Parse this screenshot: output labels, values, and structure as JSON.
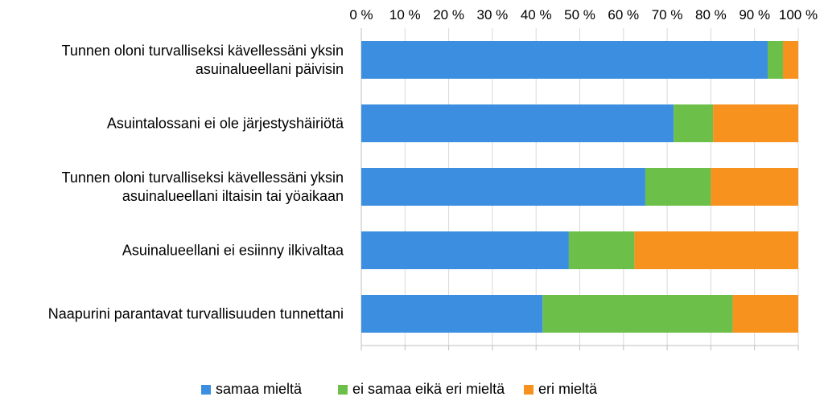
{
  "chart_data": {
    "type": "bar",
    "orientation": "horizontal",
    "stacked": true,
    "categories": [
      [
        "Tunnen oloni turvalliseksi kävellessäni yksin",
        "asuinalueellani päivisin"
      ],
      [
        "Asuintalossani ei ole järjestyshäiriötä"
      ],
      [
        "Tunnen oloni turvalliseksi kävellessäni yksin",
        "asuinalueellani iltaisin tai yöaikaan"
      ],
      [
        "Asuinalueellani ei esiinny ilkivaltaa"
      ],
      [
        "Naapurini parantavat turvallisuuden tunnettani"
      ]
    ],
    "series": [
      {
        "name": "samaa mieltä",
        "color": "#3c8fe0",
        "values": [
          93,
          71.5,
          65,
          47.5,
          41.5
        ]
      },
      {
        "name": "ei samaa eikä eri mieltä",
        "color": "#6cc04a",
        "values": [
          3.5,
          9,
          15,
          15,
          43.5
        ]
      },
      {
        "name": "eri mieltä",
        "color": "#f7921e",
        "values": [
          3.5,
          19.5,
          20,
          37.5,
          15
        ]
      }
    ],
    "x_ticks": [
      "0 %",
      "10 %",
      "20 %",
      "30 %",
      "40 %",
      "50 %",
      "60 %",
      "70 %",
      "80 %",
      "90 %",
      "100 %"
    ],
    "xlim": [
      0,
      100
    ],
    "xaxis_position": "top",
    "grid": true,
    "legend_position": "bottom"
  }
}
